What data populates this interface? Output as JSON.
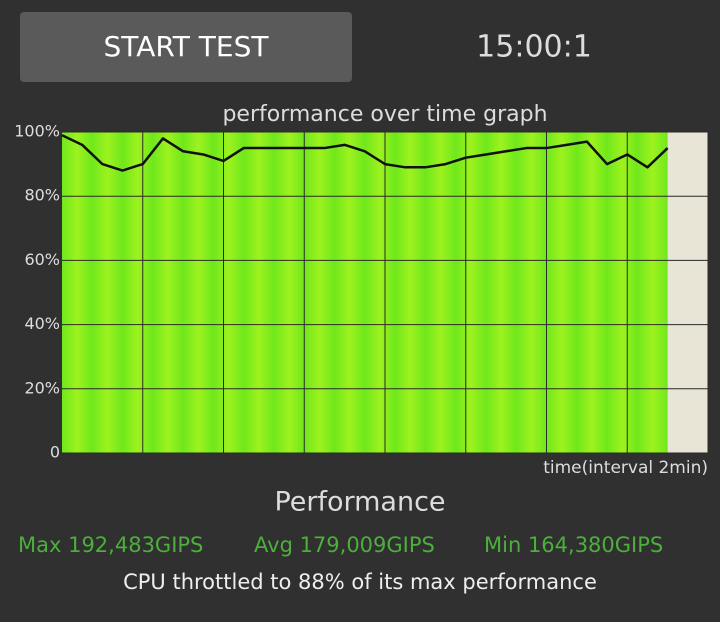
{
  "button": {
    "label": "START TEST"
  },
  "timer": "15:00:1",
  "chart_data": {
    "type": "line",
    "title": "performance over time graph",
    "x_label": "time(interval 2min)",
    "x": [
      0,
      0.5,
      1,
      1.5,
      2,
      2.5,
      3,
      3.5,
      4,
      4.5,
      5,
      5.5,
      6,
      6.5,
      7,
      7.5,
      8,
      8.5,
      9,
      9.5,
      10,
      10.5,
      11,
      11.5,
      12,
      12.5,
      13,
      13.5,
      14,
      14.5,
      15
    ],
    "values": [
      99,
      96,
      90,
      88,
      90,
      98,
      94,
      93,
      91,
      95,
      95,
      95,
      95,
      95,
      96,
      94,
      90,
      89,
      89,
      90,
      92,
      93,
      94,
      95,
      95,
      96,
      97,
      90,
      93,
      89,
      95
    ],
    "color": "#111111",
    "fill_colors": [
      "#6fe81c",
      "#9ef21e"
    ],
    "xlim": [
      0,
      16
    ],
    "xticks": [
      2,
      4,
      6,
      8,
      10,
      12,
      14,
      16
    ],
    "ylim": [
      0,
      100
    ],
    "yticks": [
      0,
      {
        "value": 20,
        "label": "20%"
      },
      {
        "value": 40,
        "label": "40%"
      },
      {
        "value": 60,
        "label": "60%"
      },
      {
        "value": 80,
        "label": "80%"
      },
      {
        "value": 100,
        "label": "100%"
      }
    ],
    "grid": true
  },
  "summary": {
    "heading": "Performance",
    "max": "Max 192,483GIPS",
    "avg": "Avg 179,009GIPS",
    "min": "Min 164,380GIPS",
    "throttle": "CPU throttled to 88% of its max performance"
  }
}
